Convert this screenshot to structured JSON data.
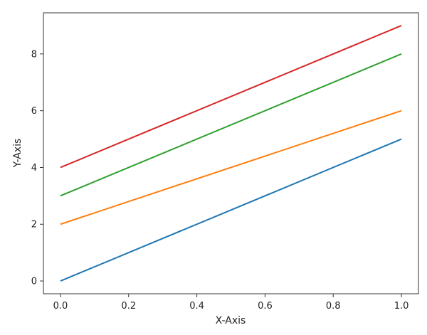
{
  "chart_data": {
    "type": "line",
    "title": "",
    "xlabel": "X-Axis",
    "ylabel": "Y-Axis",
    "xlim": [
      -0.05,
      1.05
    ],
    "ylim": [
      -0.45,
      9.45
    ],
    "xticks": [
      0.0,
      0.2,
      0.4,
      0.6,
      0.8,
      1.0
    ],
    "xtick_labels": [
      "0.0",
      "0.2",
      "0.4",
      "0.6",
      "0.8",
      "1.0"
    ],
    "yticks": [
      0,
      2,
      4,
      6,
      8
    ],
    "ytick_labels": [
      "0",
      "2",
      "4",
      "6",
      "8"
    ],
    "grid": false,
    "legend": "none",
    "series": [
      {
        "color": "#1f77b4",
        "x": [
          0,
          1
        ],
        "y": [
          0,
          5
        ]
      },
      {
        "color": "#ff7f0e",
        "x": [
          0,
          1
        ],
        "y": [
          2,
          6
        ]
      },
      {
        "color": "#2ca02c",
        "x": [
          0,
          1
        ],
        "y": [
          3,
          8
        ]
      },
      {
        "color": "#d62728",
        "x": [
          0,
          1
        ],
        "y": [
          4,
          9
        ]
      }
    ]
  }
}
